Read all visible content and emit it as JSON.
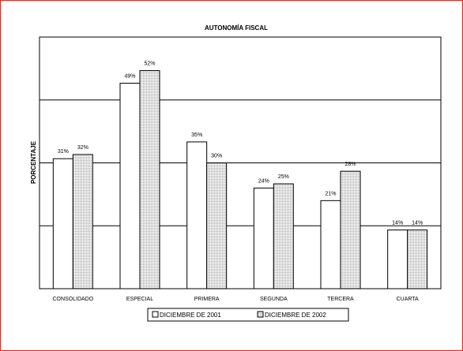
{
  "chart_data": {
    "type": "bar",
    "title": "AUTONOMÍA FISCAL",
    "xlabel": "",
    "ylabel": "PORCENTAJE",
    "categories": [
      "CONSOLIDADO",
      "ESPECIAL",
      "PRIMERA",
      "SEGUNDA",
      "TERCERA",
      "CUARTA"
    ],
    "series": [
      {
        "name": "DICIEMBRE DE 2001",
        "values": [
          31,
          49,
          35,
          24,
          21,
          14
        ],
        "labels": [
          "31%",
          "49%",
          "35%",
          "24%",
          "21%",
          "14%"
        ],
        "fill": "#ffffff"
      },
      {
        "name": "DICIEMBRE DE 2002",
        "values": [
          32,
          52,
          30,
          25,
          28,
          14
        ],
        "labels": [
          "32%",
          "52%",
          "30%",
          "25%",
          "28%",
          "14%"
        ],
        "fill": "#e8e8e8"
      }
    ],
    "ylim": [
      0,
      60
    ],
    "gridlines": [
      15,
      30,
      45,
      60
    ],
    "grid": true,
    "legend_position": "bottom"
  }
}
